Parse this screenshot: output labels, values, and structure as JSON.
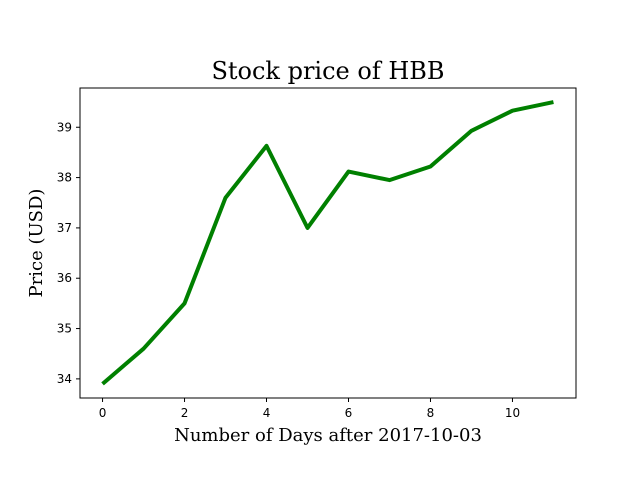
{
  "chart_data": {
    "type": "line",
    "title": "Stock price of HBB",
    "xlabel": "Number of Days after 2017-10-03",
    "ylabel": "Price (USD)",
    "x": [
      0,
      1,
      2,
      3,
      4,
      5,
      6,
      7,
      8,
      9,
      10,
      11
    ],
    "series": [
      {
        "values": [
          33.9,
          34.6,
          35.5,
          37.6,
          38.63,
          37.0,
          38.12,
          37.95,
          38.22,
          38.93,
          39.33,
          39.5
        ],
        "color": "#008000"
      }
    ],
    "xlim": [
      -0.55,
      11.55
    ],
    "ylim": [
      33.62,
      39.78
    ],
    "xticks": [
      0,
      2,
      4,
      6,
      8,
      10
    ],
    "yticks": [
      34,
      35,
      36,
      37,
      38,
      39
    ],
    "grid": false,
    "legend": false
  }
}
